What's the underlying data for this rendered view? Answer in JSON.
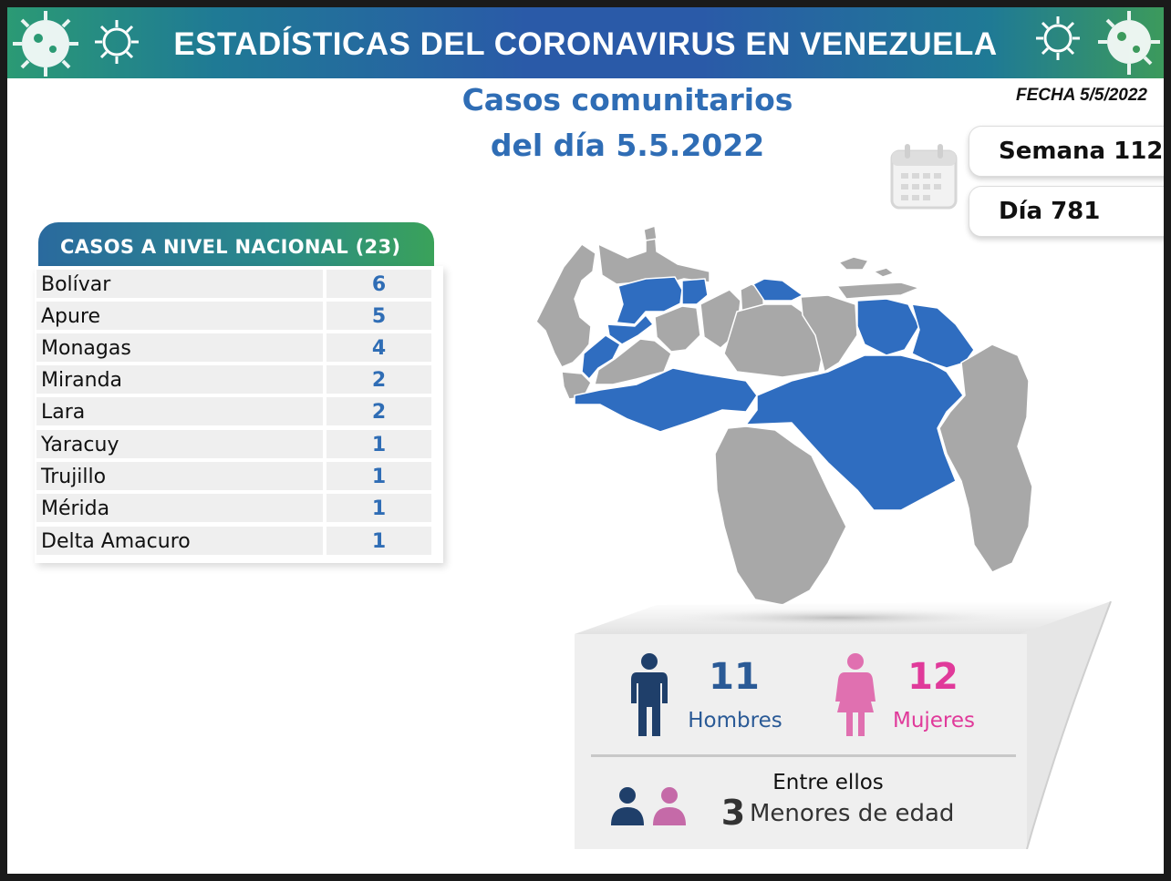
{
  "header": {
    "title": "ESTADÍSTICAS DEL CORONAVIRUS EN VENEZUELA"
  },
  "subtitle": {
    "line1": "Casos comunitarios",
    "line2": "del día 5.5.2022"
  },
  "fecha": "FECHA 5/5/2022",
  "semana": "Semana 112",
  "dia": "Día 781",
  "table": {
    "header": "CASOS A NIVEL NACIONAL  (23)",
    "rows": [
      {
        "state": "Bolívar",
        "cases": "6"
      },
      {
        "state": "Apure",
        "cases": "5"
      },
      {
        "state": "Monagas",
        "cases": "4"
      },
      {
        "state": "Miranda",
        "cases": "2"
      },
      {
        "state": "Lara",
        "cases": "2"
      },
      {
        "state": "Yaracuy",
        "cases": "1"
      },
      {
        "state": "Trujillo",
        "cases": "1"
      },
      {
        "state": "Mérida",
        "cases": "1"
      },
      {
        "state": "Delta Amacuro",
        "cases": "1"
      }
    ]
  },
  "gender": {
    "men_count": "11",
    "men_label": "Hombres",
    "women_count": "12",
    "women_label": "Mujeres"
  },
  "minors": {
    "intro": "Entre ellos",
    "count": "3",
    "label": "Menores de edad"
  },
  "colors": {
    "accent_blue": "#2f6db5",
    "highlight_state": "#2f6dc0",
    "other_state": "#a8a8a8",
    "men": "#1f3f6a",
    "women": "#e03a9a"
  },
  "icons": {
    "calendar": "calendar-icon",
    "man": "man-icon",
    "woman": "woman-icon",
    "virus": "virus-icon"
  }
}
